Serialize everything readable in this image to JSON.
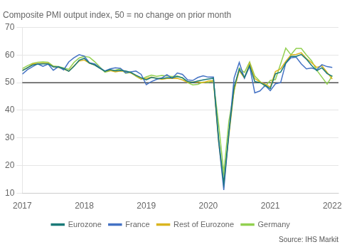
{
  "chart_data": {
    "type": "line",
    "title": "Composite PMI output index, 50 = no change on prior month",
    "annotations": [
      "Source: IHS Markit"
    ],
    "x": [
      2017.0,
      2017.083,
      2017.167,
      2017.25,
      2017.333,
      2017.417,
      2017.5,
      2017.583,
      2017.667,
      2017.75,
      2017.833,
      2017.917,
      2018.0,
      2018.083,
      2018.167,
      2018.25,
      2018.333,
      2018.417,
      2018.5,
      2018.583,
      2018.667,
      2018.75,
      2018.833,
      2018.917,
      2019.0,
      2019.083,
      2019.167,
      2019.25,
      2019.333,
      2019.417,
      2019.5,
      2019.583,
      2019.667,
      2019.75,
      2019.833,
      2019.917,
      2020.0,
      2020.083,
      2020.167,
      2020.25,
      2020.333,
      2020.417,
      2020.5,
      2020.583,
      2020.667,
      2020.75,
      2020.833,
      2020.917,
      2021.0,
      2021.083,
      2021.167,
      2021.25,
      2021.333,
      2021.417,
      2021.5,
      2021.583,
      2021.667,
      2021.75,
      2021.833,
      2021.917,
      2022.0
    ],
    "series": [
      {
        "name": "Eurozone",
        "color": "#1a7a78",
        "values": [
          54.3,
          55.4,
          56.4,
          56.7,
          56.8,
          56.8,
          55.7,
          55.7,
          55.1,
          54.1,
          55.9,
          58.1,
          58.8,
          57.1,
          56.4,
          55.2,
          54.1,
          54.7,
          54.3,
          54.5,
          54.2,
          53.7,
          52.7,
          51.8,
          51.0,
          51.9,
          51.6,
          51.5,
          51.8,
          51.8,
          52.2,
          51.8,
          50.4,
          50.1,
          50.6,
          51.0,
          51.3,
          51.6,
          29.7,
          13.6,
          31.9,
          48.5,
          54.9,
          51.9,
          56.2,
          50.4,
          50.0,
          49.1,
          47.8,
          53.2,
          53.8,
          57.1,
          59.5,
          59.5,
          60.2,
          58.5,
          56.2,
          54.3,
          55.4,
          53.3,
          52.3
        ]
      },
      {
        "name": "France",
        "color": "#4472c4",
        "values": [
          53.1,
          54.7,
          55.8,
          56.8,
          55.9,
          56.7,
          54.5,
          55.8,
          54.6,
          57.5,
          59.0,
          60.1,
          59.6,
          57.2,
          56.8,
          55.4,
          54.2,
          55.0,
          55.4,
          55.2,
          53.6,
          53.9,
          54.2,
          53.0,
          49.3,
          50.4,
          51.2,
          51.7,
          52.9,
          51.6,
          53.5,
          53.0,
          51.0,
          50.8,
          51.9,
          52.5,
          52.0,
          52.0,
          28.9,
          11.2,
          32.1,
          51.7,
          57.3,
          51.6,
          55.9,
          46.3,
          47.0,
          49.0,
          47.1,
          49.6,
          50.0,
          57.0,
          59.0,
          59.2,
          56.8,
          55.0,
          55.3,
          54.7,
          56.5,
          55.8,
          55.5
        ]
      },
      {
        "name": "Rest of Eurozone",
        "color": "#dab520",
        "values": [
          54.5,
          55.3,
          56.8,
          56.9,
          57.0,
          57.0,
          55.8,
          55.5,
          54.9,
          54.2,
          56.1,
          57.8,
          58.2,
          57.0,
          56.4,
          55.3,
          54.1,
          54.4,
          53.9,
          54.2,
          54.1,
          53.5,
          52.5,
          51.3,
          51.5,
          52.0,
          51.6,
          51.2,
          51.5,
          51.5,
          51.6,
          51.0,
          50.1,
          50.2,
          50.3,
          50.0,
          50.6,
          50.7,
          28.5,
          12.8,
          31.0,
          47.5,
          54.3,
          51.7,
          57.0,
          51.5,
          50.2,
          49.5,
          48.4,
          54.0,
          55.0,
          57.7,
          60.0,
          60.2,
          60.8,
          58.7,
          57.2,
          55.5,
          56.1,
          53.7,
          51.3
        ]
      },
      {
        "name": "Germany",
        "color": "#92d050",
        "values": [
          55.1,
          56.1,
          57.0,
          57.4,
          57.5,
          57.4,
          56.0,
          55.8,
          55.3,
          54.8,
          57.3,
          58.9,
          59.5,
          59.2,
          57.6,
          55.7,
          53.8,
          54.3,
          54.5,
          55.0,
          53.4,
          53.7,
          52.3,
          51.3,
          52.1,
          52.7,
          52.3,
          52.6,
          52.4,
          52.2,
          52.4,
          51.7,
          50.0,
          49.2,
          49.4,
          50.2,
          50.1,
          50.7,
          35.0,
          17.4,
          36.2,
          47.0,
          55.3,
          53.7,
          57.5,
          52.4,
          50.5,
          48.6,
          50.8,
          51.1,
          56.8,
          62.5,
          60.1,
          62.4,
          62.4,
          60.0,
          57.9,
          54.5,
          52.0,
          49.5,
          52.5
        ]
      }
    ],
    "xlim": [
      2017,
      2022.1
    ],
    "xticks": [
      2017,
      2018,
      2019,
      2020,
      2021,
      2022
    ],
    "ylim": [
      10,
      70
    ],
    "yticks": [
      10,
      20,
      30,
      40,
      50,
      60,
      70
    ],
    "hline": 50,
    "grid": true,
    "legend": "bottom"
  }
}
